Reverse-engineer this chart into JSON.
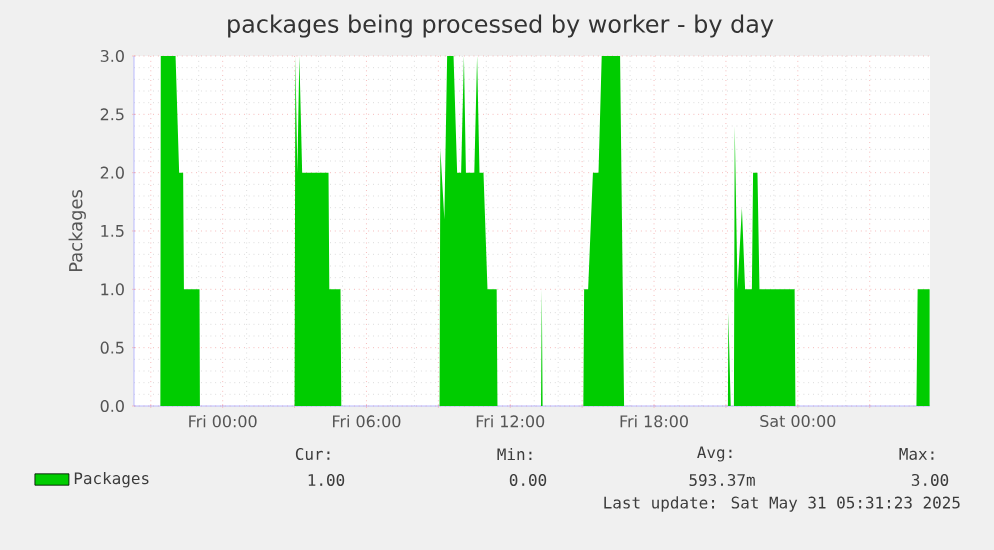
{
  "chart_data": {
    "type": "area",
    "title": "packages being processed by worker - by day",
    "ylabel": "Packages",
    "xlim": [
      "2025-05-29T20:18",
      "2025-05-31T05:31"
    ],
    "ylim": [
      0,
      3
    ],
    "xticks": [
      {
        "value": "2025-05-29T21:00",
        "label": null
      },
      {
        "value": "2025-05-30T00:00",
        "label": "Fri 00:00"
      },
      {
        "value": "2025-05-30T03:00",
        "label": null
      },
      {
        "value": "2025-05-30T06:00",
        "label": "Fri 06:00"
      },
      {
        "value": "2025-05-30T09:00",
        "label": null
      },
      {
        "value": "2025-05-30T12:00",
        "label": "Fri 12:00"
      },
      {
        "value": "2025-05-30T15:00",
        "label": null
      },
      {
        "value": "2025-05-30T18:00",
        "label": "Fri 18:00"
      },
      {
        "value": "2025-05-30T21:00",
        "label": null
      },
      {
        "value": "2025-05-31T00:00",
        "label": "Sat 00:00"
      },
      {
        "value": "2025-05-31T03:00",
        "label": null
      }
    ],
    "yticks": [
      {
        "value": 0,
        "label": "0.0"
      },
      {
        "value": 0.5,
        "label": "0.5"
      },
      {
        "value": 1,
        "label": "1.0"
      },
      {
        "value": 1.5,
        "label": "1.5"
      },
      {
        "value": 2,
        "label": "2.0"
      },
      {
        "value": 2.5,
        "label": "2.5"
      },
      {
        "value": 3,
        "label": "3.0"
      }
    ],
    "grid": true,
    "legend": "bottom left",
    "series": [
      {
        "name": "Packages",
        "color": "#00cc00",
        "x": [
          "2025-05-29T20:18",
          "2025-05-29T21:24",
          "2025-05-29T21:25",
          "2025-05-29T22:02",
          "2025-05-29T22:11",
          "2025-05-29T22:21",
          "2025-05-29T22:23",
          "2025-05-29T23:02",
          "2025-05-29T23:03",
          "2025-05-30T03:00",
          "2025-05-30T03:02",
          "2025-05-30T03:07",
          "2025-05-30T03:12",
          "2025-05-30T03:19",
          "2025-05-30T04:25",
          "2025-05-30T04:27",
          "2025-05-30T04:55",
          "2025-05-30T04:57",
          "2025-05-30T09:03",
          "2025-05-30T09:05",
          "2025-05-30T09:15",
          "2025-05-30T09:22",
          "2025-05-30T09:38",
          "2025-05-30T09:47",
          "2025-05-30T09:57",
          "2025-05-30T10:04",
          "2025-05-30T10:09",
          "2025-05-30T10:30",
          "2025-05-30T10:37",
          "2025-05-30T10:43",
          "2025-05-30T10:53",
          "2025-05-30T11:03",
          "2025-05-30T11:26",
          "2025-05-30T11:28",
          "2025-05-30T13:17",
          "2025-05-30T13:19",
          "2025-05-30T13:21",
          "2025-05-30T15:03",
          "2025-05-30T15:05",
          "2025-05-30T15:15",
          "2025-05-30T15:27",
          "2025-05-30T15:41",
          "2025-05-30T15:49",
          "2025-05-30T16:35",
          "2025-05-30T16:45",
          "2025-05-30T21:05",
          "2025-05-30T21:06",
          "2025-05-30T21:12",
          "2025-05-30T21:20",
          "2025-05-30T21:22",
          "2025-05-30T21:29",
          "2025-05-30T21:40",
          "2025-05-30T21:48",
          "2025-05-30T22:05",
          "2025-05-30T22:08",
          "2025-05-30T22:19",
          "2025-05-30T22:24",
          "2025-05-30T23:52",
          "2025-05-30T23:54",
          "2025-05-31T04:57",
          "2025-05-31T05:00",
          "2025-05-31T05:30"
        ],
        "values": [
          0,
          0,
          3.0,
          3.0,
          2.0,
          2.0,
          1.0,
          1.0,
          0,
          0,
          3.0,
          2.0,
          3.0,
          2.0,
          2.0,
          1.0,
          1.0,
          0,
          0,
          2.2,
          1.6,
          3.0,
          3.0,
          2.0,
          2.0,
          3.0,
          2.0,
          2.0,
          3.0,
          2.0,
          2.0,
          1.0,
          1.0,
          0,
          0,
          1.0,
          0,
          0,
          1.0,
          1.0,
          2.0,
          2.0,
          3.0,
          3.0,
          0,
          0,
          0.8,
          0,
          0,
          2.4,
          1.0,
          1.7,
          1.0,
          1.0,
          2.0,
          2.0,
          1.0,
          1.0,
          0,
          0,
          1.0,
          1.0
        ]
      }
    ],
    "annotations": [
      "Cur:",
      "Min:",
      "Avg:",
      "Max:",
      "1.00",
      "0.00",
      "593.37m",
      "3.00",
      "Last update: Sat May 31 05:31:23 2025"
    ]
  }
}
